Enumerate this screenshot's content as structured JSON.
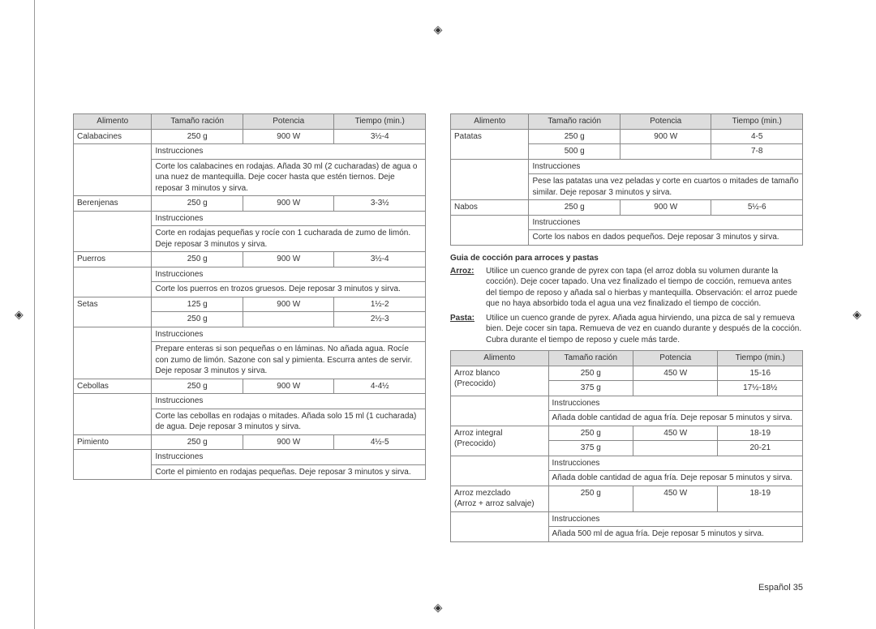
{
  "headers": {
    "food": "Alimento",
    "serving": "Tamaño ración",
    "power": "Potencia",
    "time": "Tiempo (min.)",
    "instructions": "Instrucciones"
  },
  "left_table": [
    {
      "food": "Calabacines",
      "rows": [
        {
          "serving": "250 g",
          "power": "900 W",
          "time": "3½-4"
        }
      ],
      "instructions": "Corte los calabacines en rodajas. Añada 30 ml (2 cucharadas) de agua o una nuez de mantequilla. Deje cocer hasta que estén tiernos. Deje reposar 3 minutos y sirva."
    },
    {
      "food": "Berenjenas",
      "rows": [
        {
          "serving": "250 g",
          "power": "900 W",
          "time": "3-3½"
        }
      ],
      "instructions": "Corte en rodajas pequeñas y rocíe con 1 cucharada de zumo de limón. Deje reposar 3 minutos y sirva."
    },
    {
      "food": "Puerros",
      "rows": [
        {
          "serving": "250 g",
          "power": "900 W",
          "time": "3½-4"
        }
      ],
      "instructions": "Corte los puerros en trozos gruesos. Deje reposar 3 minutos y sirva."
    },
    {
      "food": "Setas",
      "rows": [
        {
          "serving": "125 g",
          "power": "900 W",
          "time": "1½-2"
        },
        {
          "serving": "250 g",
          "power": "",
          "time": "2½-3"
        }
      ],
      "instructions": "Prepare enteras si son pequeñas o en láminas. No añada agua. Rocíe con zumo de limón. Sazone con sal y pimienta. Escurra antes de servir. Deje reposar 3 minutos y sirva."
    },
    {
      "food": "Cebollas",
      "rows": [
        {
          "serving": "250 g",
          "power": "900 W",
          "time": "4-4½"
        }
      ],
      "instructions": "Corte las cebollas en rodajas o mitades. Añada solo 15 ml (1 cucharada) de agua. Deje reposar 3 minutos y sirva."
    },
    {
      "food": "Pimiento",
      "rows": [
        {
          "serving": "250 g",
          "power": "900 W",
          "time": "4½-5"
        }
      ],
      "instructions": "Corte el pimiento en rodajas pequeñas. Deje reposar 3 minutos y sirva."
    }
  ],
  "right_table_top": [
    {
      "food": "Patatas",
      "rows": [
        {
          "serving": "250 g",
          "power": "900 W",
          "time": "4-5"
        },
        {
          "serving": "500 g",
          "power": "",
          "time": "7-8"
        }
      ],
      "instructions": "Pese las patatas una vez peladas y corte en cuartos o mitades de tamaño similar. Deje reposar 3 minutos y sirva."
    },
    {
      "food": "Nabos",
      "rows": [
        {
          "serving": "250 g",
          "power": "900 W",
          "time": "5½-6"
        }
      ],
      "instructions": "Corte los nabos en dados pequeños. Deje reposar 3 minutos y sirva."
    }
  ],
  "guide": {
    "title": "Guia de cocción para arroces y pastas",
    "arroz_label": "Arroz:",
    "arroz_text": "Utilice un cuenco grande de pyrex con tapa (el arroz dobla su volumen durante la cocción). Deje cocer tapado. Una vez finalizado el tiempo de cocción, remueva antes del tiempo de reposo y añada sal o hierbas y mantequilla. Observación: el arroz puede que no haya absorbido toda el agua una vez finalizado el tiempo de cocción.",
    "pasta_label": "Pasta:",
    "pasta_text": "Utilice un cuenco grande de pyrex. Añada agua hirviendo, una pizca de sal y remueva bien. Deje cocer sin tapa. Remueva de vez en cuando durante y después de la cocción. Cubra durante el tiempo de reposo y cuele más tarde."
  },
  "right_table_bottom": [
    {
      "food": "Arroz blanco",
      "food2": "(Precocido)",
      "rows": [
        {
          "serving": "250 g",
          "power": "450 W",
          "time": "15-16"
        },
        {
          "serving": "375 g",
          "power": "",
          "time": "17½-18½"
        }
      ],
      "instructions": "Añada doble cantidad de agua fría. Deje reposar 5 minutos y sirva."
    },
    {
      "food": "Arroz integral",
      "food2": "(Precocido)",
      "rows": [
        {
          "serving": "250 g",
          "power": "450 W",
          "time": "18-19"
        },
        {
          "serving": "375 g",
          "power": "",
          "time": "20-21"
        }
      ],
      "instructions": "Añada doble cantidad de agua fría. Deje reposar 5 minutos y sirva."
    },
    {
      "food": "Arroz mezclado",
      "food2": "(Arroz + arroz salvaje)",
      "rows": [
        {
          "serving": "250 g",
          "power": "450 W",
          "time": "18-19"
        }
      ],
      "instructions": "Añada 500 ml de agua fría. Deje reposar 5 minutos y sirva."
    }
  ],
  "footer": "Español  35"
}
